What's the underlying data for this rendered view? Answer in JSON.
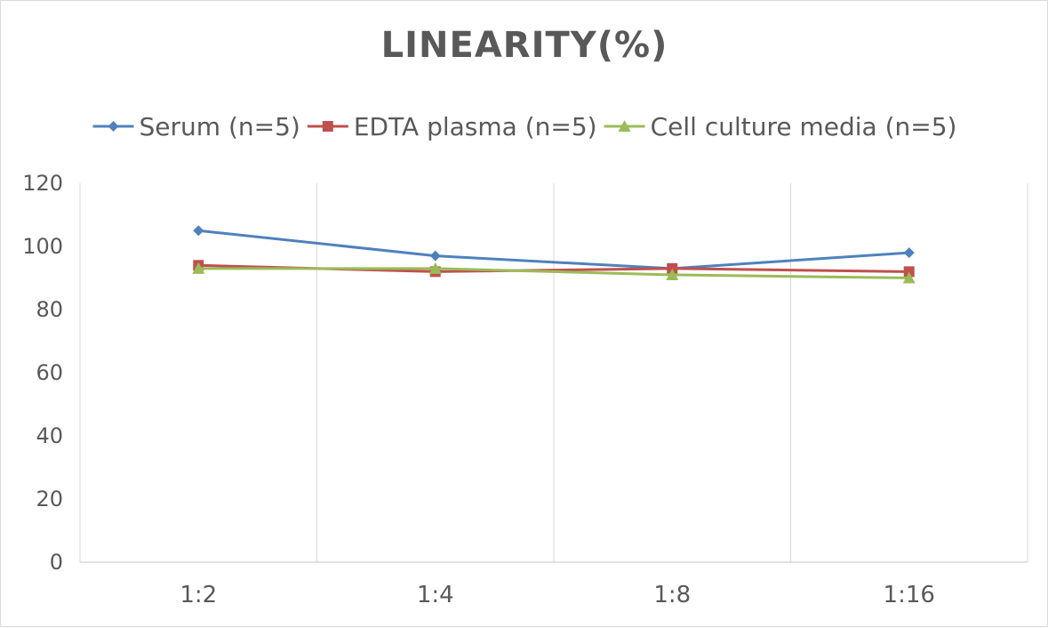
{
  "chart_data": {
    "type": "line",
    "title": "LINEARITY(%)",
    "xlabel": "",
    "ylabel": "",
    "categories": [
      "1:2",
      "1:4",
      "1:8",
      "1:16"
    ],
    "ylim": [
      0,
      120
    ],
    "yticks": [
      0,
      20,
      40,
      60,
      80,
      100,
      120
    ],
    "grid": "vertical",
    "legend_position": "top",
    "series": [
      {
        "name": "Serum (n=5)",
        "values": [
          105,
          97,
          93,
          98
        ],
        "color": "#4f81bd",
        "marker": "diamond"
      },
      {
        "name": "EDTA plasma (n=5)",
        "values": [
          94,
          92,
          93,
          92
        ],
        "color": "#c0504d",
        "marker": "square"
      },
      {
        "name": "Cell culture media (n=5)",
        "values": [
          93,
          93,
          91,
          90
        ],
        "color": "#9bbb59",
        "marker": "triangle"
      }
    ]
  }
}
